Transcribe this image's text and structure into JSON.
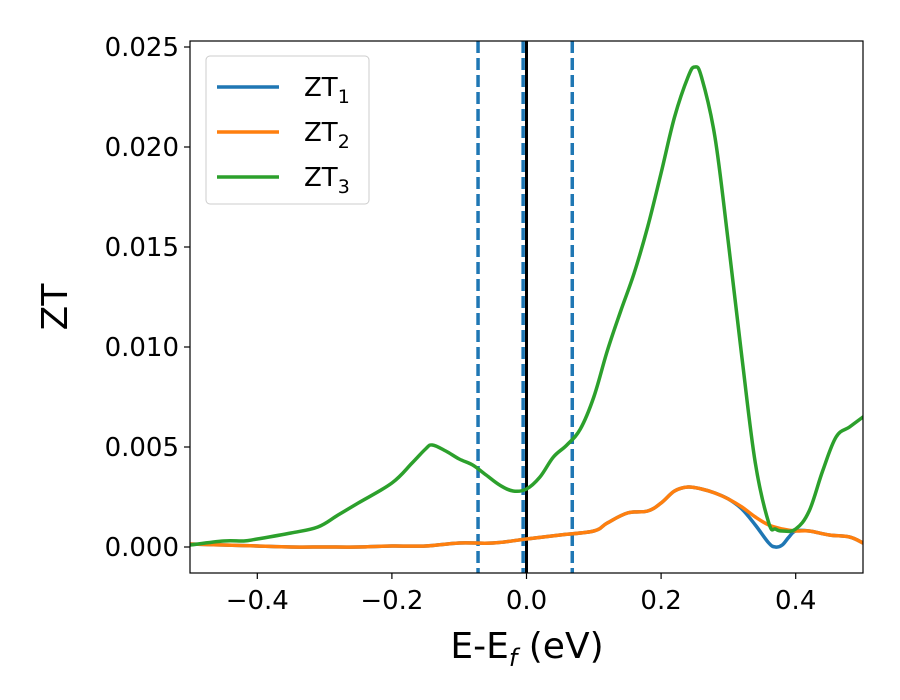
{
  "chart_data": {
    "type": "line",
    "title": "",
    "xlabel_main": "E-E",
    "xlabel_sub": "f",
    "xlabel_tail": " (eV)",
    "ylabel": "ZT",
    "xlim": [
      -0.5,
      0.5
    ],
    "ylim": [
      -0.0013,
      0.0253
    ],
    "x_ticks": [
      -0.4,
      -0.2,
      0.0,
      0.2,
      0.4
    ],
    "x_tick_labels": [
      "−0.4",
      "−0.2",
      "0.0",
      "0.2",
      "0.4"
    ],
    "y_ticks": [
      0.0,
      0.005,
      0.01,
      0.015,
      0.02,
      0.025
    ],
    "y_tick_labels": [
      "0.000",
      "0.005",
      "0.010",
      "0.015",
      "0.020",
      "0.025"
    ],
    "grid": false,
    "legend_position": "top-left",
    "vertical_lines": [
      {
        "x": -0.072,
        "style": "dashed",
        "color": "#1f77b4"
      },
      {
        "x": -0.005,
        "style": "dashed",
        "color": "#1f77b4"
      },
      {
        "x": 0.068,
        "style": "dashed",
        "color": "#1f77b4"
      },
      {
        "x": 0.0,
        "style": "solid",
        "color": "#000000"
      }
    ],
    "series": [
      {
        "name": "ZT",
        "subscript": "1",
        "color": "#1f77b4",
        "x": [
          -0.5,
          -0.45,
          -0.4,
          -0.35,
          -0.3,
          -0.25,
          -0.2,
          -0.15,
          -0.1,
          -0.05,
          0.0,
          0.05,
          0.1,
          0.12,
          0.15,
          0.18,
          0.2,
          0.22,
          0.24,
          0.26,
          0.28,
          0.3,
          0.32,
          0.34,
          0.36,
          0.37,
          0.38,
          0.39,
          0.4,
          0.42,
          0.45,
          0.48,
          0.5
        ],
        "y": [
          0.00015,
          0.0001,
          5e-05,
          0.0,
          0.0,
          0.0,
          5e-05,
          5e-05,
          0.0002,
          0.0002,
          0.0004,
          0.0006,
          0.0008,
          0.0012,
          0.0017,
          0.0018,
          0.0022,
          0.0028,
          0.003,
          0.0029,
          0.0027,
          0.0024,
          0.0019,
          0.0011,
          0.0002,
          0.0,
          0.0001,
          0.0005,
          0.0008,
          0.0008,
          0.0006,
          0.0005,
          0.0002
        ]
      },
      {
        "name": "ZT",
        "subscript": "2",
        "color": "#ff7f0e",
        "x": [
          -0.5,
          -0.45,
          -0.4,
          -0.35,
          -0.3,
          -0.25,
          -0.2,
          -0.15,
          -0.1,
          -0.05,
          0.0,
          0.05,
          0.1,
          0.12,
          0.15,
          0.18,
          0.2,
          0.22,
          0.24,
          0.26,
          0.28,
          0.3,
          0.32,
          0.34,
          0.36,
          0.38,
          0.4,
          0.42,
          0.45,
          0.48,
          0.5
        ],
        "y": [
          0.00015,
          0.0001,
          5e-05,
          0.0,
          0.0,
          0.0,
          5e-05,
          5e-05,
          0.0002,
          0.0002,
          0.0004,
          0.0006,
          0.0008,
          0.0012,
          0.0017,
          0.0018,
          0.0022,
          0.0028,
          0.003,
          0.0029,
          0.0027,
          0.0024,
          0.002,
          0.0015,
          0.0011,
          0.0009,
          0.0008,
          0.0008,
          0.0006,
          0.0005,
          0.0002
        ]
      },
      {
        "name": "ZT",
        "subscript": "3",
        "color": "#2ca02c",
        "x": [
          -0.5,
          -0.45,
          -0.42,
          -0.4,
          -0.35,
          -0.31,
          -0.28,
          -0.25,
          -0.2,
          -0.17,
          -0.15,
          -0.14,
          -0.12,
          -0.1,
          -0.08,
          -0.06,
          -0.04,
          -0.02,
          0.0,
          0.02,
          0.04,
          0.06,
          0.08,
          0.1,
          0.12,
          0.14,
          0.16,
          0.18,
          0.2,
          0.22,
          0.24,
          0.25,
          0.26,
          0.28,
          0.3,
          0.32,
          0.34,
          0.36,
          0.37,
          0.38,
          0.4,
          0.42,
          0.44,
          0.46,
          0.48,
          0.5
        ],
        "y": [
          0.0001,
          0.0003,
          0.0003,
          0.0004,
          0.0007,
          0.001,
          0.0016,
          0.0022,
          0.0032,
          0.0042,
          0.0049,
          0.0051,
          0.0048,
          0.0044,
          0.0041,
          0.0036,
          0.0031,
          0.0028,
          0.0029,
          0.0035,
          0.0045,
          0.0051,
          0.0059,
          0.0075,
          0.0098,
          0.0118,
          0.0137,
          0.016,
          0.0187,
          0.0215,
          0.0235,
          0.024,
          0.0235,
          0.0205,
          0.0152,
          0.0095,
          0.0042,
          0.0012,
          0.0009,
          0.0008,
          0.0009,
          0.0018,
          0.0038,
          0.0055,
          0.006,
          0.0065
        ]
      }
    ]
  }
}
